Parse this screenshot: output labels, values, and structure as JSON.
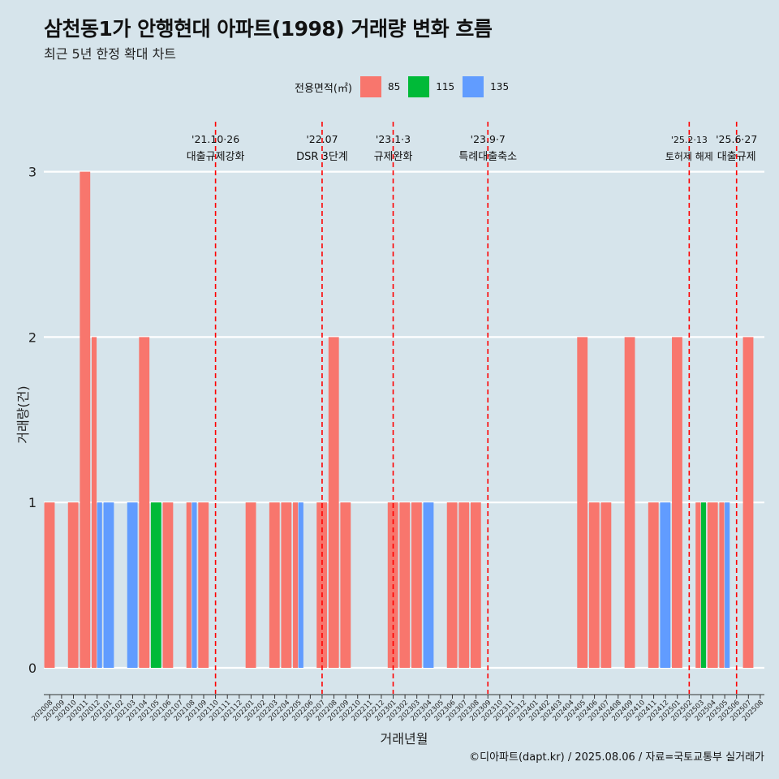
{
  "title": "삼천동1가 안행현대 아파트(1998) 거래량 변화 흐름",
  "subtitle": "최근 5년 한정 확대 차트",
  "footer": "©디아파트(dapt.kr) / 2025.08.06 / 자료=국토교통부 실거래가",
  "legend": {
    "title": "전용면적(㎡)",
    "items": [
      {
        "label": "85",
        "color": "#f8766d"
      },
      {
        "label": "115",
        "color": "#00ba38"
      },
      {
        "label": "135",
        "color": "#619cff"
      }
    ]
  },
  "chart_data": {
    "type": "bar",
    "xlabel": "거래년월",
    "ylabel": "거래량(건)",
    "ylim": [
      0,
      3
    ],
    "yticks": [
      0,
      1,
      2,
      3
    ],
    "grid": true,
    "categories": [
      "202008",
      "202009",
      "202010",
      "202011",
      "202012",
      "202101",
      "202102",
      "202103",
      "202104",
      "202105",
      "202106",
      "202107",
      "202108",
      "202109",
      "202110",
      "202111",
      "202112",
      "202201",
      "202202",
      "202203",
      "202204",
      "202205",
      "202206",
      "202207",
      "202208",
      "202209",
      "202210",
      "202211",
      "202212",
      "202301",
      "202302",
      "202303",
      "202304",
      "202305",
      "202306",
      "202307",
      "202308",
      "202309",
      "202310",
      "202311",
      "202312",
      "202401",
      "202402",
      "202403",
      "202404",
      "202405",
      "202406",
      "202407",
      "202408",
      "202409",
      "202410",
      "202411",
      "202412",
      "202501",
      "202502",
      "202503",
      "202504",
      "202505",
      "202506",
      "202507",
      "202508"
    ],
    "series": [
      {
        "name": "85",
        "color": "#f8766d",
        "values": [
          1,
          0,
          1,
          3,
          2,
          0,
          0,
          0,
          2,
          0,
          1,
          0,
          1,
          1,
          0,
          0,
          0,
          1,
          0,
          1,
          1,
          1,
          0,
          1,
          2,
          1,
          0,
          0,
          0,
          1,
          1,
          1,
          0,
          0,
          1,
          1,
          1,
          0,
          0,
          0,
          0,
          0,
          0,
          0,
          0,
          2,
          1,
          1,
          0,
          2,
          0,
          1,
          0,
          2,
          0,
          1,
          1,
          1,
          0,
          2,
          0
        ]
      },
      {
        "name": "115",
        "color": "#00ba38",
        "values": [
          0,
          0,
          0,
          0,
          0,
          0,
          0,
          0,
          0,
          1,
          0,
          0,
          0,
          0,
          0,
          0,
          0,
          0,
          0,
          0,
          0,
          0,
          0,
          0,
          0,
          0,
          0,
          0,
          0,
          0,
          0,
          0,
          0,
          0,
          0,
          0,
          0,
          0,
          0,
          0,
          0,
          0,
          0,
          0,
          0,
          0,
          0,
          0,
          0,
          0,
          0,
          0,
          0,
          0,
          0,
          1,
          0,
          0,
          0,
          0,
          0
        ]
      },
      {
        "name": "135",
        "color": "#619cff",
        "values": [
          0,
          0,
          0,
          0,
          1,
          1,
          0,
          1,
          0,
          0,
          0,
          0,
          1,
          0,
          0,
          0,
          0,
          0,
          0,
          0,
          0,
          1,
          0,
          0,
          0,
          0,
          0,
          0,
          0,
          0,
          0,
          0,
          1,
          0,
          0,
          0,
          0,
          0,
          0,
          0,
          0,
          0,
          0,
          0,
          0,
          0,
          0,
          0,
          0,
          0,
          0,
          0,
          1,
          0,
          0,
          0,
          0,
          1,
          0,
          0,
          0
        ]
      }
    ],
    "annotations": [
      {
        "x": "202110",
        "date": "'21.10·26",
        "label": "대출규제강화"
      },
      {
        "x": "202207",
        "date": "'22.07",
        "label": "DSR 3단계"
      },
      {
        "x": "202301",
        "date": "'23.1·3",
        "label": "규제완화"
      },
      {
        "x": "202309",
        "date": "'23.9·7",
        "label": "특례대출축소"
      },
      {
        "x": "202502",
        "date": "'25.2·13",
        "label": "토허제 해제"
      },
      {
        "x": "202506",
        "date": "'25.6·27",
        "label": "대출규제"
      }
    ],
    "annotation_line_color": "#ff0000"
  }
}
